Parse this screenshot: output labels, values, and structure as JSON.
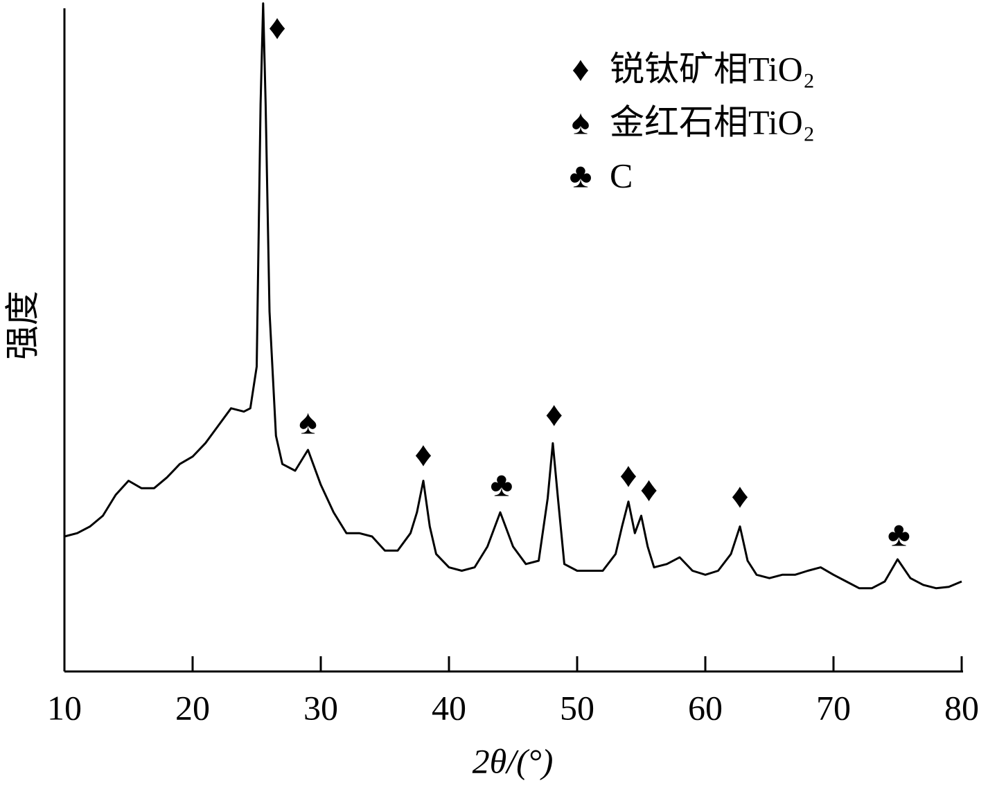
{
  "chart_data": {
    "type": "line",
    "x_label": "2θ/(°)",
    "y_label": "强度",
    "xlim": [
      10,
      80
    ],
    "xticks": [
      10,
      20,
      30,
      40,
      50,
      60,
      70,
      80
    ],
    "ylim": [
      0,
      100
    ],
    "series": [
      {
        "color": "#000000",
        "x": [
          10,
          11,
          12,
          13,
          14,
          15,
          16,
          17,
          18,
          19,
          20,
          21,
          22,
          23,
          24,
          24.5,
          25,
          25.3,
          25.5,
          25.7,
          26,
          26.5,
          27,
          28,
          29,
          30,
          31,
          32,
          33,
          34,
          35,
          36,
          37,
          37.5,
          38,
          38.5,
          39,
          40,
          41,
          42,
          43,
          44,
          45,
          46,
          47,
          47.7,
          48.1,
          48.5,
          49,
          50,
          51,
          52,
          53,
          53.5,
          54,
          54.5,
          55,
          55.5,
          56,
          57,
          58,
          59,
          60,
          61,
          62,
          62.7,
          63.3,
          64,
          65,
          66,
          67,
          68,
          69,
          70,
          71,
          72,
          73,
          74,
          75,
          76,
          77,
          78,
          79,
          80
        ],
        "values": [
          20.1,
          20.6,
          21.6,
          23.2,
          26.3,
          28.4,
          27.3,
          27.3,
          28.9,
          30.9,
          32.0,
          34.0,
          36.6,
          39.2,
          38.7,
          39.2,
          45.4,
          84.5,
          99.5,
          84.5,
          53.6,
          35.1,
          30.9,
          29.9,
          33.0,
          27.8,
          23.7,
          20.6,
          20.6,
          20.1,
          18.0,
          18.0,
          20.6,
          23.7,
          28.4,
          21.6,
          17.5,
          15.5,
          15.0,
          15.5,
          18.6,
          23.7,
          18.6,
          16.0,
          16.5,
          25.8,
          34.0,
          25.8,
          16.0,
          15.0,
          15.0,
          15.0,
          17.5,
          21.6,
          25.3,
          20.6,
          23.2,
          18.6,
          15.5,
          16.0,
          17.0,
          15.0,
          14.4,
          15.0,
          17.5,
          21.6,
          16.5,
          14.4,
          13.9,
          14.4,
          14.4,
          15.0,
          15.5,
          14.4,
          13.4,
          12.4,
          12.4,
          13.4,
          16.7,
          13.9,
          12.9,
          12.4,
          12.6,
          13.4
        ]
      }
    ],
    "annotations": [
      {
        "text": "♦",
        "x": 26.6,
        "y": 95.4
      },
      {
        "text": "♠",
        "x": 29.0,
        "y": 36.6
      },
      {
        "text": "♦",
        "x": 38.0,
        "y": 31.8
      },
      {
        "text": "♣",
        "x": 44.1,
        "y": 27.3
      },
      {
        "text": "♦",
        "x": 48.2,
        "y": 37.8
      },
      {
        "text": "♦",
        "x": 54.0,
        "y": 28.7
      },
      {
        "text": "♦",
        "x": 55.6,
        "y": 26.6
      },
      {
        "text": "♦",
        "x": 62.7,
        "y": 25.6
      },
      {
        "text": "♣",
        "x": 75.1,
        "y": 19.9
      }
    ],
    "legend": [
      {
        "symbol": "♦",
        "label": "锐钛矿相TiO₂"
      },
      {
        "symbol": "♠",
        "label": "金红石相TiO₂"
      },
      {
        "symbol": "♣",
        "label": "C"
      }
    ]
  }
}
